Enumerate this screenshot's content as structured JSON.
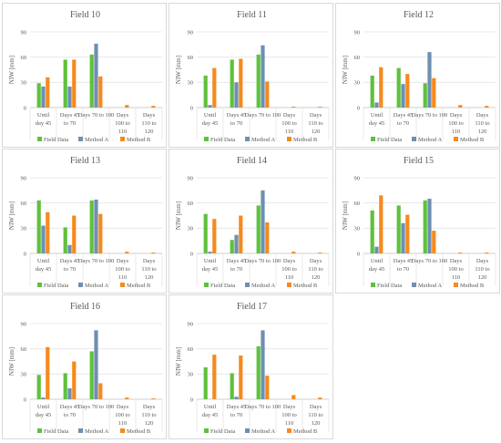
{
  "legend": {
    "series": [
      "Field Data",
      "Method A",
      "Method B"
    ],
    "colors": [
      "#5fc13c",
      "#6e8fb0",
      "#f58a1f"
    ]
  },
  "axes": {
    "ylabel": "NIW [mm]",
    "yticks": [
      "0",
      "30",
      "60",
      "90"
    ],
    "categories": [
      [
        "Until",
        "day 45"
      ],
      [
        "Days 45",
        "to 70"
      ],
      [
        "Days 70 to 100"
      ],
      [
        "Days",
        "100 to",
        "110"
      ],
      [
        "Days",
        "110 to",
        "120"
      ]
    ]
  },
  "chart_data": [
    {
      "type": "bar",
      "title": "Field 10",
      "ylim": [
        0,
        90
      ],
      "ylabel": "NIW [mm]",
      "categories": [
        "Until day 45",
        "Days 45 to 70",
        "Days 70 to 100",
        "Days 100 to 110",
        "Days 110 to 120"
      ],
      "series": [
        {
          "name": "Field Data",
          "values": [
            29,
            57,
            63,
            0,
            0
          ]
        },
        {
          "name": "Method A",
          "values": [
            25,
            25,
            76,
            0,
            0
          ]
        },
        {
          "name": "Method B",
          "values": [
            36,
            57,
            37,
            3,
            2
          ]
        }
      ]
    },
    {
      "type": "bar",
      "title": "Field 11",
      "ylim": [
        0,
        90
      ],
      "ylabel": "NIW [mm]",
      "categories": [
        "Until day 45",
        "Days 45 to 70",
        "Days 70 to 100",
        "Days 100 to 110",
        "Days 110 to 120"
      ],
      "series": [
        {
          "name": "Field Data",
          "values": [
            38,
            57,
            63,
            0,
            0
          ]
        },
        {
          "name": "Method A",
          "values": [
            3,
            30,
            74,
            0,
            0
          ]
        },
        {
          "name": "Method B",
          "values": [
            47,
            58,
            31,
            1,
            1
          ]
        }
      ]
    },
    {
      "type": "bar",
      "title": "Field 12",
      "ylim": [
        0,
        90
      ],
      "ylabel": "NIW [mm]",
      "categories": [
        "Until day 45",
        "Days 45 to 70",
        "Days 70 to 100",
        "Days 100 to 110",
        "Days 110 to 120"
      ],
      "series": [
        {
          "name": "Field Data",
          "values": [
            38,
            47,
            29,
            0,
            0
          ]
        },
        {
          "name": "Method A",
          "values": [
            6,
            28,
            66,
            0,
            0
          ]
        },
        {
          "name": "Method B",
          "values": [
            48,
            40,
            35,
            3,
            2
          ]
        }
      ]
    },
    {
      "type": "bar",
      "title": "Field 13",
      "ylim": [
        0,
        90
      ],
      "ylabel": "NIW [mm]",
      "categories": [
        "Until day 45",
        "Days 45 to 70",
        "Days 70 to 100",
        "Days 100 to 110",
        "Days 110 to 120"
      ],
      "series": [
        {
          "name": "Field Data",
          "values": [
            63,
            31,
            63,
            0,
            0
          ]
        },
        {
          "name": "Method A",
          "values": [
            33,
            10,
            64,
            0,
            0
          ]
        },
        {
          "name": "Method B",
          "values": [
            49,
            45,
            47,
            2,
            1
          ]
        }
      ]
    },
    {
      "type": "bar",
      "title": "Field 14",
      "ylim": [
        0,
        90
      ],
      "ylabel": "NIW [mm]",
      "categories": [
        "Until day 45",
        "Days 45 to 70",
        "Days 70 to 100",
        "Days 100 to 110",
        "Days 110 to 120"
      ],
      "series": [
        {
          "name": "Field Data",
          "values": [
            47,
            16,
            57,
            0,
            0
          ]
        },
        {
          "name": "Method A",
          "values": [
            2,
            22,
            75,
            0,
            0
          ]
        },
        {
          "name": "Method B",
          "values": [
            41,
            45,
            37,
            2,
            1
          ]
        }
      ]
    },
    {
      "type": "bar",
      "title": "Field 15",
      "ylim": [
        0,
        90
      ],
      "ylabel": "NIW [mm]",
      "categories": [
        "Until day 45",
        "Days 45 to 70",
        "Days 70 to 100",
        "Days 100 to 110",
        "Days 110 to 120"
      ],
      "series": [
        {
          "name": "Field Data",
          "values": [
            51,
            57,
            63,
            0,
            0
          ]
        },
        {
          "name": "Method A",
          "values": [
            8,
            36,
            65,
            0,
            0
          ]
        },
        {
          "name": "Method B",
          "values": [
            69,
            46,
            27,
            1,
            1
          ]
        }
      ]
    },
    {
      "type": "bar",
      "title": "Field 16",
      "ylim": [
        0,
        90
      ],
      "ylabel": "NIW [mm]",
      "categories": [
        "Until day 45",
        "Days 45 to 70",
        "Days 70 to 100",
        "Days 100 to 110",
        "Days 110 to 120"
      ],
      "series": [
        {
          "name": "Field Data",
          "values": [
            29,
            31,
            57,
            0,
            0
          ]
        },
        {
          "name": "Method A",
          "values": [
            2,
            13,
            82,
            0,
            0
          ]
        },
        {
          "name": "Method B",
          "values": [
            62,
            45,
            19,
            2,
            1
          ]
        }
      ]
    },
    {
      "type": "bar",
      "title": "Field 17",
      "ylim": [
        0,
        90
      ],
      "ylabel": "NIW [mm]",
      "categories": [
        "Until day 45",
        "Days 45 to 70",
        "Days 70 to 100",
        "Days 100 to 110",
        "Days 110 to 120"
      ],
      "series": [
        {
          "name": "Field Data",
          "values": [
            38,
            31,
            63,
            0,
            0
          ]
        },
        {
          "name": "Method A",
          "values": [
            0,
            3,
            82,
            0,
            0
          ]
        },
        {
          "name": "Method B",
          "values": [
            53,
            52,
            28,
            5,
            2
          ]
        }
      ]
    }
  ]
}
